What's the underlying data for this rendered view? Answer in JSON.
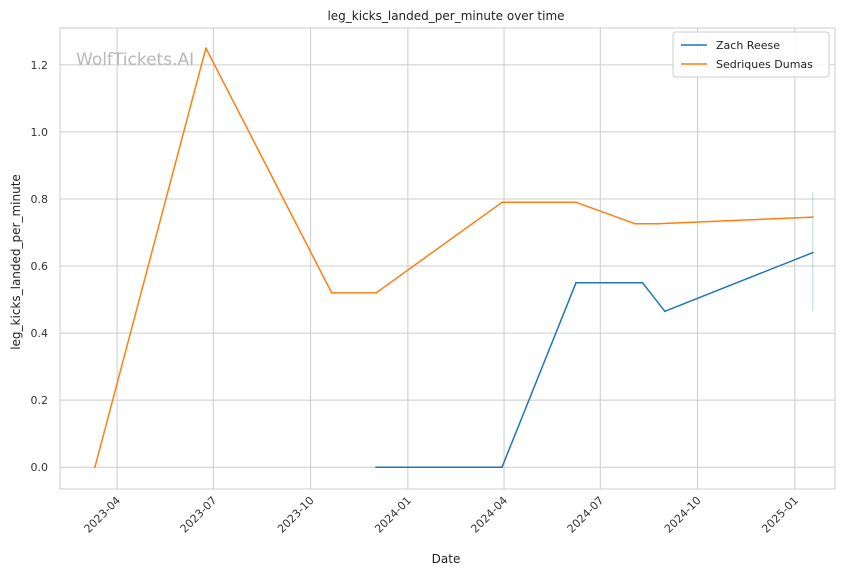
{
  "chart_data": {
    "type": "line",
    "title": "leg_kicks_landed_per_minute over time",
    "xlabel": "Date",
    "ylabel": "leg_kicks_landed_per_minute",
    "xlim": [
      "2023-02-06",
      "2025-02-08"
    ],
    "ylim": [
      -0.065,
      1.31
    ],
    "x_ticks": [
      "2023-04",
      "2023-07",
      "2023-10",
      "2024-01",
      "2024-04",
      "2024-07",
      "2024-10",
      "2025-01"
    ],
    "y_ticks": [
      0.0,
      0.2,
      0.4,
      0.6,
      0.8,
      1.0,
      1.2
    ],
    "y_tick_labels": [
      "0.0",
      "0.2",
      "0.4",
      "0.6",
      "0.8",
      "1.0",
      "1.2"
    ],
    "grid": true,
    "legend_position": "top-right",
    "watermark": "WolfTickets.AI",
    "series": [
      {
        "name": "Zach Reese",
        "color": "#1f77b4",
        "points": [
          {
            "x": "2023-12-02",
            "y": 0.0
          },
          {
            "x": "2024-03-30",
            "y": 0.0
          },
          {
            "x": "2024-06-08",
            "y": 0.55
          },
          {
            "x": "2024-08-10",
            "y": 0.55
          },
          {
            "x": "2024-08-31",
            "y": 0.465
          },
          {
            "x": "2025-01-18",
            "y": 0.64
          }
        ]
      },
      {
        "name": "Sedriques Dumas",
        "color": "#ff7f0e",
        "points": [
          {
            "x": "2023-03-11",
            "y": 0.0
          },
          {
            "x": "2023-06-24",
            "y": 1.25
          },
          {
            "x": "2023-10-21",
            "y": 0.52
          },
          {
            "x": "2023-12-02",
            "y": 0.52
          },
          {
            "x": "2024-03-30",
            "y": 0.79
          },
          {
            "x": "2024-06-08",
            "y": 0.79
          },
          {
            "x": "2024-08-03",
            "y": 0.726
          },
          {
            "x": "2024-08-24",
            "y": 0.726
          },
          {
            "x": "2025-01-18",
            "y": 0.746
          }
        ]
      }
    ],
    "error_bar": {
      "x": "2025-01-18",
      "y_low": 0.465,
      "y_high": 0.82,
      "color": "#2a9d8f"
    }
  }
}
